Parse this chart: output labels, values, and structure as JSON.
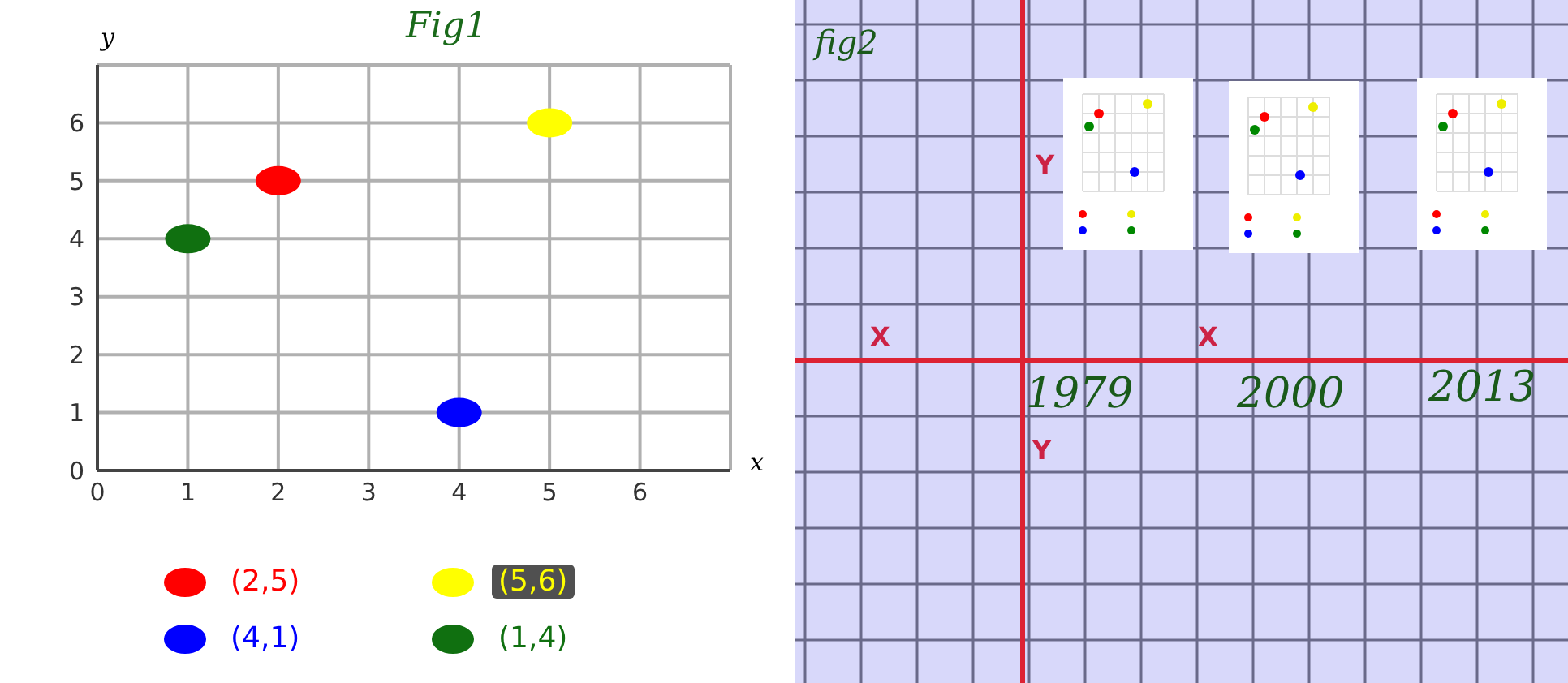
{
  "chart_data": [
    {
      "type": "scatter",
      "title": "Fig1",
      "xlabel": "x",
      "ylabel": "y",
      "xlim": [
        0,
        7
      ],
      "ylim": [
        0,
        7
      ],
      "xticks": [
        0,
        1,
        2,
        3,
        4,
        5,
        6
      ],
      "yticks": [
        0,
        1,
        2,
        3,
        4,
        5,
        6
      ],
      "grid": true,
      "legend": "bottom",
      "marker": "circle",
      "series": [
        {
          "name": "(2,5)",
          "color": "#ff0000",
          "x": [
            2
          ],
          "values": [
            5
          ]
        },
        {
          "name": "(5,6)",
          "color": "#ffff00",
          "x": [
            5
          ],
          "values": [
            6
          ]
        },
        {
          "name": "(4,1)",
          "color": "#0000ff",
          "x": [
            4
          ],
          "values": [
            1
          ]
        },
        {
          "name": "(1,4)",
          "color": "#107010",
          "x": [
            1
          ],
          "values": [
            4
          ]
        }
      ]
    },
    {
      "type": "other",
      "title": "fig2",
      "annotations": [
        "Y",
        "X",
        "X",
        "1979",
        "2000",
        "2013",
        "Y"
      ]
    }
  ]
}
